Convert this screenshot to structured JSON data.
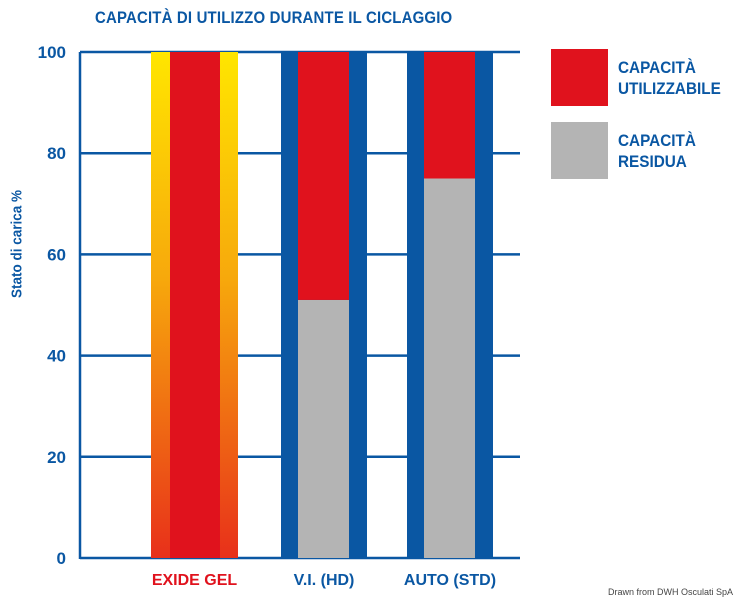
{
  "chart_data": {
    "type": "bar",
    "title": "CAPACITÀ DI UTILIZZO DURANTE IL CICLAGGIO",
    "ylabel": "Stato di carica %",
    "xlabel": "",
    "ylim": [
      0,
      100
    ],
    "yticks": [
      0,
      20,
      40,
      60,
      80,
      100
    ],
    "grid": true,
    "stacked": true,
    "categories": [
      "EXIDE GEL",
      "V.I. (HD)",
      "AUTO (STD)"
    ],
    "category_colors": [
      "#e0121d",
      "#0a57a3",
      "#0a57a3"
    ],
    "series": [
      {
        "name": "CAPACITÀ RESIDUA",
        "values": [
          0,
          51,
          75
        ],
        "color": "#b4b4b4"
      },
      {
        "name": "CAPACITÀ UTILIZZABILE",
        "values": [
          100,
          49,
          25
        ],
        "color": "#e0121d"
      }
    ],
    "legend": {
      "placement": "right",
      "entries": [
        {
          "line1": "CAPACITÀ",
          "line2": "UTILIZZABILE",
          "color": "#e0121d"
        },
        {
          "line1": "CAPACITÀ",
          "line2": "RESIDUA",
          "color": "#b4b4b4"
        }
      ]
    },
    "frame_colors": {
      "gel": [
        "#ffe600",
        "#e8301a"
      ],
      "standard": "#0a57a3"
    },
    "axis_color": "#0a57a3"
  },
  "credit": "Drawn from DWH Osculati SpA"
}
